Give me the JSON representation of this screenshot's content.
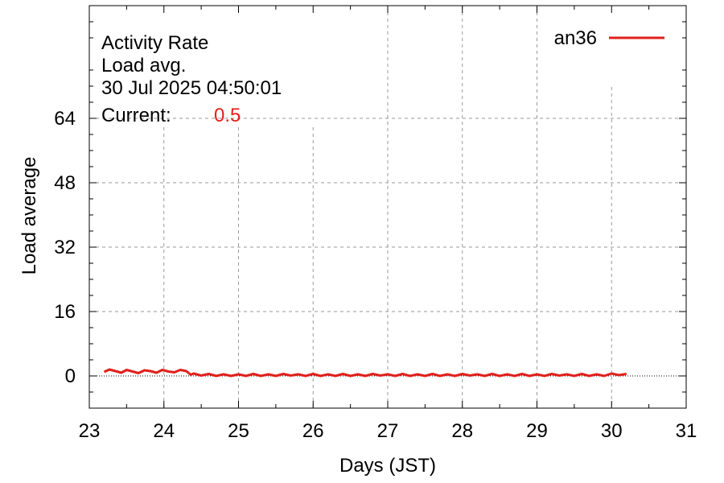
{
  "chart_data": {
    "type": "line",
    "info": {
      "line1": "Activity Rate",
      "line2": "Load avg.",
      "timestamp": "30 Jul 2025 04:50:01",
      "current_label": "Current:",
      "current_value": "0.5"
    },
    "xlabel": "Days (JST)",
    "ylabel": "Load average",
    "xlim": [
      23,
      31
    ],
    "ylim": [
      -8,
      92
    ],
    "x_ticks": [
      23,
      24,
      25,
      26,
      27,
      28,
      29,
      30,
      31
    ],
    "x_tick_labels": [
      "23",
      "24",
      "25",
      "26",
      "27",
      "28",
      "29",
      "30",
      "31"
    ],
    "y_ticks": [
      0,
      16,
      32,
      48,
      64
    ],
    "y_tick_labels": [
      "0",
      "16",
      "32",
      "48",
      "64"
    ],
    "grid": true,
    "legend_position": "top-right",
    "colors": {
      "series": "#e0201b",
      "grid": "#9a9a9a",
      "axis": "#000000"
    },
    "series": [
      {
        "name": "an36",
        "color": "#e0201b",
        "x": [
          23.2,
          23.27,
          23.35,
          23.43,
          23.5,
          23.58,
          23.66,
          23.74,
          23.82,
          23.9,
          23.98,
          24.06,
          24.14,
          24.22,
          24.3,
          24.36,
          24.4,
          24.5,
          24.6,
          24.7,
          24.8,
          24.9,
          25.0,
          25.1,
          25.2,
          25.3,
          25.4,
          25.5,
          25.6,
          25.7,
          25.8,
          25.9,
          26.0,
          26.1,
          26.2,
          26.3,
          26.4,
          26.5,
          26.6,
          26.7,
          26.8,
          26.9,
          27.0,
          27.1,
          27.2,
          27.3,
          27.4,
          27.5,
          27.6,
          27.7,
          27.8,
          27.9,
          28.0,
          28.1,
          28.2,
          28.3,
          28.4,
          28.5,
          28.6,
          28.7,
          28.8,
          28.9,
          29.0,
          29.1,
          29.2,
          29.3,
          29.4,
          29.5,
          29.6,
          29.7,
          29.8,
          29.9,
          30.0,
          30.1,
          30.2
        ],
        "y": [
          1.0,
          1.6,
          1.2,
          0.8,
          1.5,
          1.1,
          0.7,
          1.4,
          1.2,
          0.8,
          1.5,
          1.1,
          0.9,
          1.5,
          1.2,
          0.3,
          0.6,
          0.1,
          0.5,
          0.0,
          0.4,
          0.0,
          0.4,
          0.0,
          0.5,
          0.0,
          0.4,
          0.0,
          0.5,
          0.1,
          0.4,
          0.0,
          0.5,
          0.0,
          0.4,
          0.0,
          0.5,
          0.0,
          0.4,
          0.0,
          0.5,
          0.1,
          0.4,
          0.0,
          0.5,
          0.0,
          0.4,
          0.0,
          0.5,
          0.0,
          0.4,
          0.0,
          0.5,
          0.1,
          0.4,
          0.0,
          0.5,
          0.0,
          0.4,
          0.0,
          0.5,
          0.0,
          0.4,
          0.0,
          0.5,
          0.1,
          0.4,
          0.0,
          0.5,
          0.0,
          0.4,
          0.0,
          0.6,
          0.2,
          0.5
        ]
      }
    ]
  }
}
